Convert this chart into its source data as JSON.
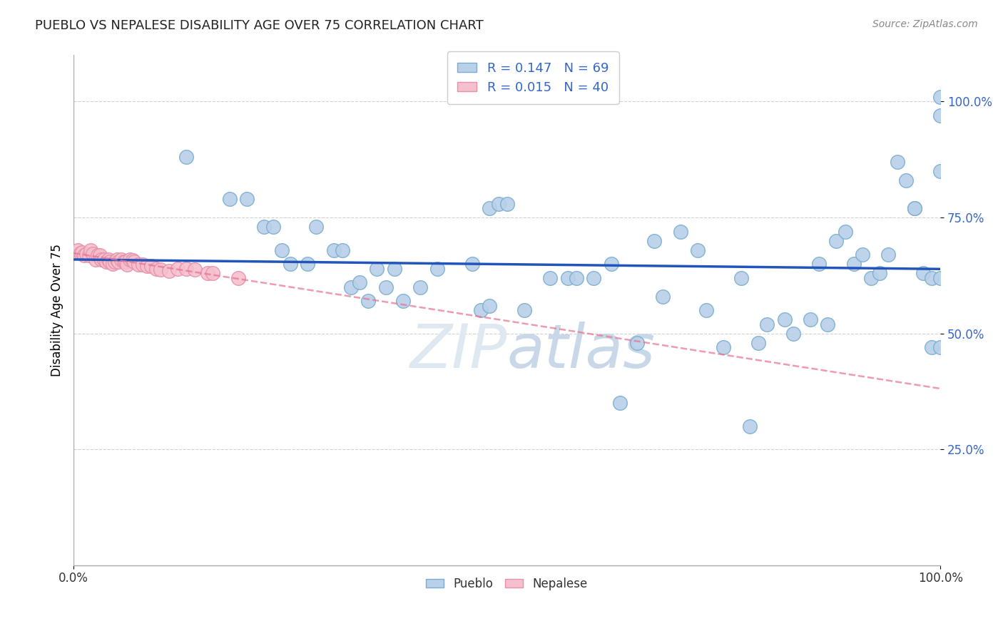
{
  "title": "PUEBLO VS NEPALESE DISABILITY AGE OVER 75 CORRELATION CHART",
  "source": "Source: ZipAtlas.com",
  "ylabel": "Disability Age Over 75",
  "x_min": 0.0,
  "x_max": 1.0,
  "y_min": 0.0,
  "y_max": 1.1,
  "y_ticks": [
    0.25,
    0.5,
    0.75,
    1.0
  ],
  "y_tick_labels": [
    "25.0%",
    "50.0%",
    "75.0%",
    "100.0%"
  ],
  "x_ticks": [
    0.0,
    1.0
  ],
  "x_tick_labels": [
    "0.0%",
    "100.0%"
  ],
  "pueblo_R": 0.147,
  "pueblo_N": 69,
  "nepalese_R": 0.015,
  "nepalese_N": 40,
  "pueblo_color": "#b8d0e8",
  "pueblo_edge_color": "#7aadcf",
  "nepalese_color": "#f5c0ce",
  "nepalese_edge_color": "#e890a8",
  "trend_pueblo_color": "#2255bb",
  "trend_nepalese_color": "#e87090",
  "background_color": "#ffffff",
  "grid_color": "#cccccc",
  "watermark_color": "#dde8f0",
  "pueblo_x": [
    0.04,
    0.13,
    0.18,
    0.2,
    0.22,
    0.23,
    0.24,
    0.25,
    0.27,
    0.28,
    0.3,
    0.31,
    0.32,
    0.33,
    0.34,
    0.35,
    0.36,
    0.37,
    0.38,
    0.4,
    0.42,
    0.46,
    0.47,
    0.48,
    0.48,
    0.49,
    0.5,
    0.52,
    0.55,
    0.57,
    0.58,
    0.6,
    0.62,
    0.63,
    0.65,
    0.67,
    0.68,
    0.7,
    0.72,
    0.73,
    0.75,
    0.77,
    0.78,
    0.79,
    0.8,
    0.82,
    0.83,
    0.85,
    0.86,
    0.87,
    0.88,
    0.89,
    0.9,
    0.91,
    0.92,
    0.93,
    0.94,
    0.95,
    0.96,
    0.97,
    0.97,
    0.98,
    0.99,
    0.99,
    1.0,
    1.0,
    1.0,
    1.0,
    1.0
  ],
  "pueblo_y": [
    0.655,
    0.88,
    0.79,
    0.79,
    0.73,
    0.73,
    0.68,
    0.65,
    0.65,
    0.73,
    0.68,
    0.68,
    0.6,
    0.61,
    0.57,
    0.64,
    0.6,
    0.64,
    0.57,
    0.6,
    0.64,
    0.65,
    0.55,
    0.56,
    0.77,
    0.78,
    0.78,
    0.55,
    0.62,
    0.62,
    0.62,
    0.62,
    0.65,
    0.35,
    0.48,
    0.7,
    0.58,
    0.72,
    0.68,
    0.55,
    0.47,
    0.62,
    0.3,
    0.48,
    0.52,
    0.53,
    0.5,
    0.53,
    0.65,
    0.52,
    0.7,
    0.72,
    0.65,
    0.67,
    0.62,
    0.63,
    0.67,
    0.87,
    0.83,
    0.77,
    0.77,
    0.63,
    0.47,
    0.62,
    0.62,
    0.97,
    0.85,
    0.47,
    1.01
  ],
  "nepalese_x": [
    0.005,
    0.008,
    0.01,
    0.012,
    0.015,
    0.018,
    0.02,
    0.022,
    0.025,
    0.028,
    0.03,
    0.032,
    0.035,
    0.038,
    0.04,
    0.042,
    0.045,
    0.048,
    0.05,
    0.052,
    0.055,
    0.058,
    0.06,
    0.062,
    0.065,
    0.068,
    0.07,
    0.075,
    0.08,
    0.085,
    0.09,
    0.095,
    0.1,
    0.11,
    0.12,
    0.13,
    0.14,
    0.155,
    0.16,
    0.19
  ],
  "nepalese_y": [
    0.68,
    0.673,
    0.675,
    0.668,
    0.672,
    0.668,
    0.68,
    0.672,
    0.66,
    0.668,
    0.668,
    0.66,
    0.66,
    0.655,
    0.66,
    0.655,
    0.65,
    0.655,
    0.66,
    0.655,
    0.66,
    0.655,
    0.655,
    0.648,
    0.66,
    0.658,
    0.655,
    0.648,
    0.648,
    0.645,
    0.645,
    0.64,
    0.638,
    0.635,
    0.64,
    0.64,
    0.638,
    0.63,
    0.63,
    0.62
  ]
}
